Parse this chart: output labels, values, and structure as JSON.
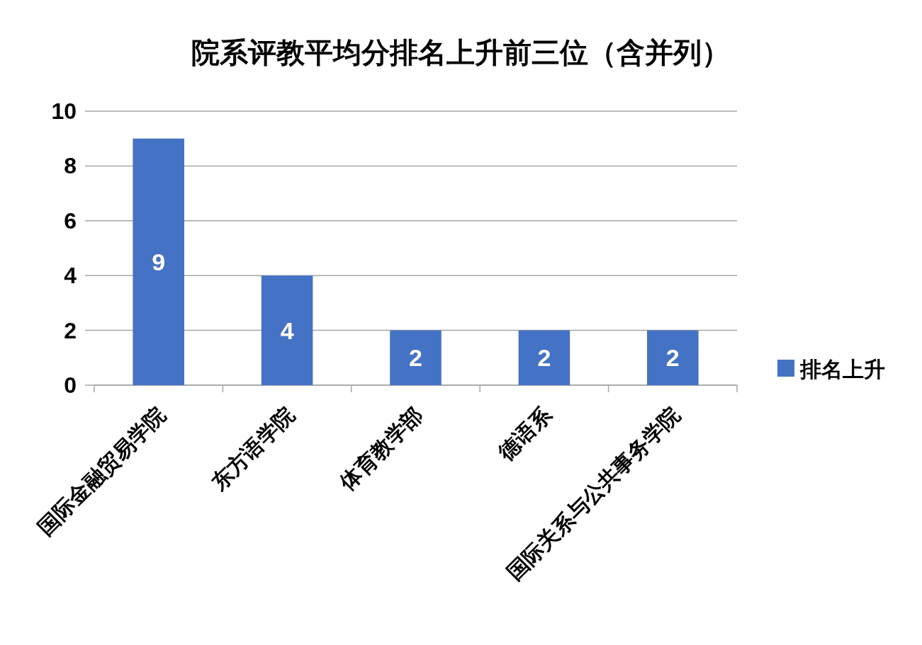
{
  "chart_data": {
    "type": "bar",
    "title": "院系评教平均分排名上升前三位（含并列）",
    "categories": [
      "国际金融贸易学院",
      "东方语学院",
      "体育教学部",
      "德语系",
      "国际关系与公共事务学院"
    ],
    "series": [
      {
        "name": "排名上升",
        "color": "#4472c4",
        "values": [
          9,
          4,
          2,
          2,
          2
        ]
      }
    ],
    "ylim": [
      0,
      10
    ],
    "yticks": [
      0,
      2,
      4,
      6,
      8,
      10
    ],
    "grid": "y",
    "legend": "right",
    "data_labels": true
  }
}
